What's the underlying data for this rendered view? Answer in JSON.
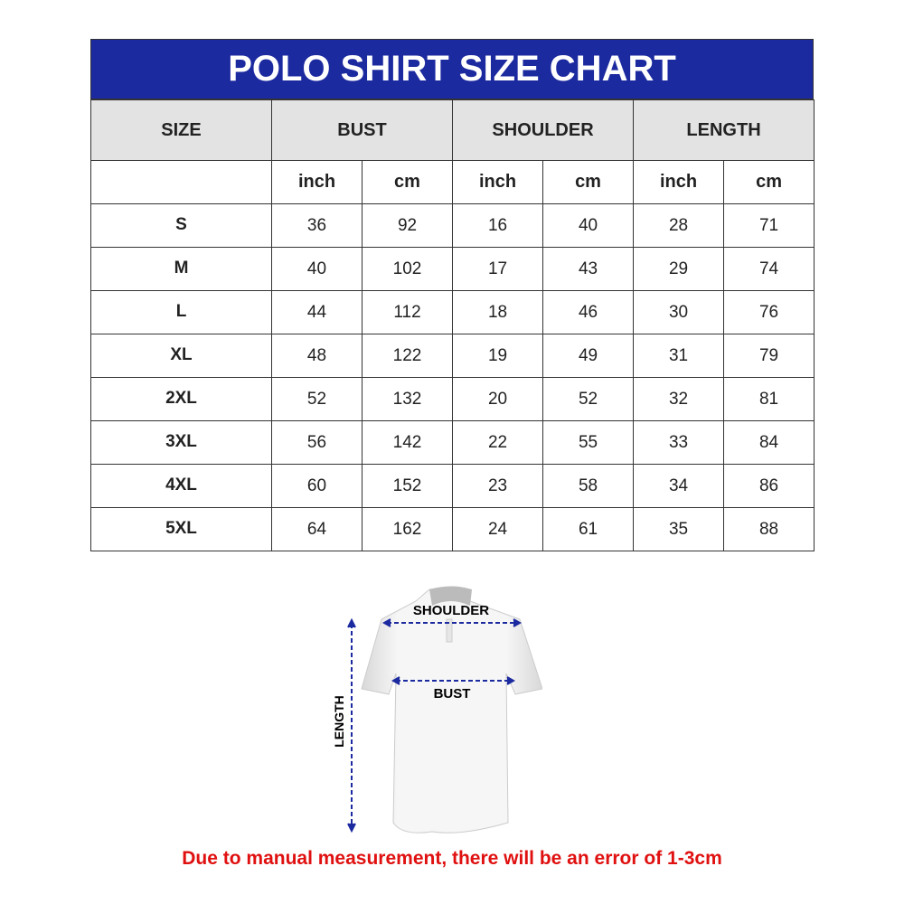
{
  "title": "POLO SHIRT SIZE CHART",
  "headers": [
    "SIZE",
    "BUST",
    "SHOULDER",
    "LENGTH"
  ],
  "units": [
    "inch",
    "cm",
    "inch",
    "cm",
    "inch",
    "cm"
  ],
  "rows": [
    {
      "size": "S",
      "values": [
        "36",
        "92",
        "16",
        "40",
        "28",
        "71"
      ]
    },
    {
      "size": "M",
      "values": [
        "40",
        "102",
        "17",
        "43",
        "29",
        "74"
      ]
    },
    {
      "size": "L",
      "values": [
        "44",
        "112",
        "18",
        "46",
        "30",
        "76"
      ]
    },
    {
      "size": "XL",
      "values": [
        "48",
        "122",
        "19",
        "49",
        "31",
        "79"
      ]
    },
    {
      "size": "2XL",
      "values": [
        "52",
        "132",
        "20",
        "52",
        "32",
        "81"
      ]
    },
    {
      "size": "3XL",
      "values": [
        "56",
        "142",
        "22",
        "55",
        "33",
        "84"
      ]
    },
    {
      "size": "4XL",
      "values": [
        "60",
        "152",
        "23",
        "58",
        "34",
        "86"
      ]
    },
    {
      "size": "5XL",
      "values": [
        "64",
        "162",
        "24",
        "61",
        "35",
        "88"
      ]
    }
  ],
  "diagram": {
    "shoulder": "SHOULDER",
    "bust": "BUST",
    "length": "LENGTH"
  },
  "note": "Due to manual measurement, there will be an error of 1-3cm",
  "colors": {
    "header_bg": "#1c2aa0",
    "arrow": "#1c2aa0",
    "note": "#e01010"
  }
}
